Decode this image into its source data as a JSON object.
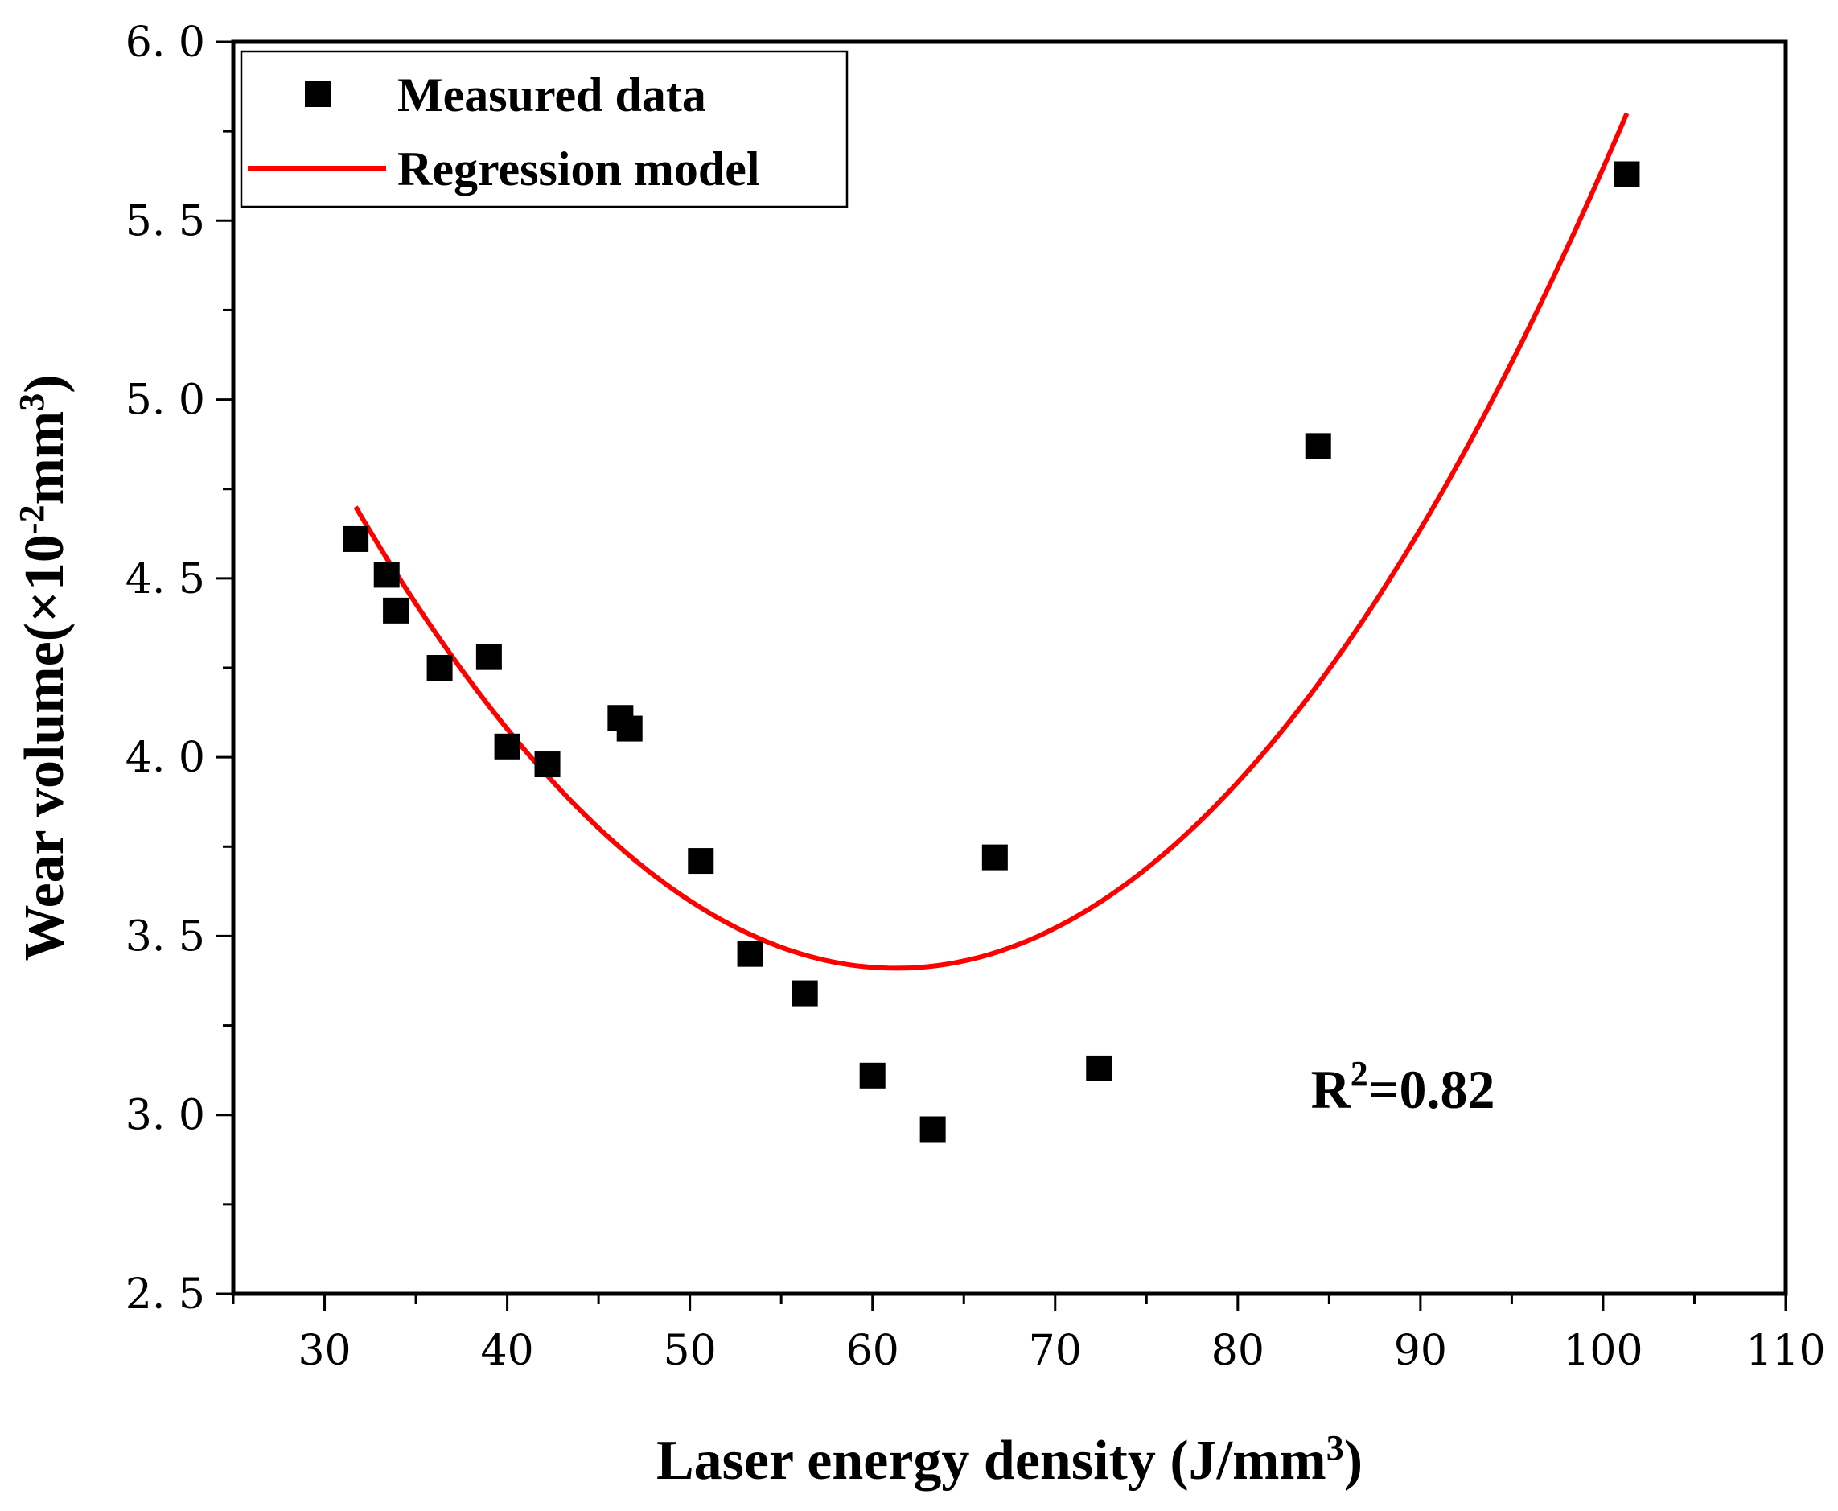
{
  "chart_data": {
    "type": "scatter",
    "title": "",
    "xlabel": "Laser energy density (J/mm",
    "xlabel_sup": "3",
    "xlabel_end": ")",
    "ylabel": "Wear volume(×10",
    "ylabel_sup": "-2",
    "ylabel_mid": "mm",
    "ylabel_sup2": "3",
    "ylabel_end": ")",
    "xlim": [
      25,
      110
    ],
    "ylim": [
      2.5,
      6.0
    ],
    "x_ticks": [
      30,
      40,
      50,
      60,
      70,
      80,
      90,
      100,
      110
    ],
    "x_tick_labels": [
      "30",
      "40",
      "50",
      "60",
      "70",
      "80",
      "90",
      "100",
      "110"
    ],
    "y_ticks": [
      2.5,
      3.0,
      3.5,
      4.0,
      4.5,
      5.0,
      5.5,
      6.0
    ],
    "y_tick_labels": [
      "2. 5",
      "3. 0",
      "3. 5",
      "4. 0",
      "4. 5",
      "5. 0",
      "5. 5",
      "6. 0"
    ],
    "grid": false,
    "legend_position": "top-left",
    "series": [
      {
        "name": "Measured data",
        "kind": "scatter",
        "marker": "square",
        "color": "#000000",
        "points": [
          {
            "x": 31.7,
            "y": 4.61
          },
          {
            "x": 33.4,
            "y": 4.51
          },
          {
            "x": 33.9,
            "y": 4.41
          },
          {
            "x": 36.3,
            "y": 4.25
          },
          {
            "x": 39.0,
            "y": 4.28
          },
          {
            "x": 40.0,
            "y": 4.03
          },
          {
            "x": 42.2,
            "y": 3.98
          },
          {
            "x": 46.2,
            "y": 4.11
          },
          {
            "x": 46.7,
            "y": 4.08
          },
          {
            "x": 50.6,
            "y": 3.71
          },
          {
            "x": 53.3,
            "y": 3.45
          },
          {
            "x": 56.3,
            "y": 3.34
          },
          {
            "x": 60.0,
            "y": 3.11
          },
          {
            "x": 63.3,
            "y": 2.96
          },
          {
            "x": 66.7,
            "y": 3.72
          },
          {
            "x": 72.4,
            "y": 3.13
          },
          {
            "x": 84.4,
            "y": 4.87
          },
          {
            "x": 101.3,
            "y": 5.63
          }
        ]
      },
      {
        "name": "Regression model",
        "kind": "line",
        "color": "#ff0000",
        "x_range": [
          31.7,
          101.3
        ],
        "vertex": {
          "x": 61.3,
          "y": 3.41
        },
        "y_at_start": 4.7,
        "y_at_end": 5.8
      }
    ],
    "annotations": [
      {
        "text": "R",
        "sup": "2",
        "tail": "=0.82",
        "x": 84.0,
        "y": 3.02
      }
    ]
  }
}
